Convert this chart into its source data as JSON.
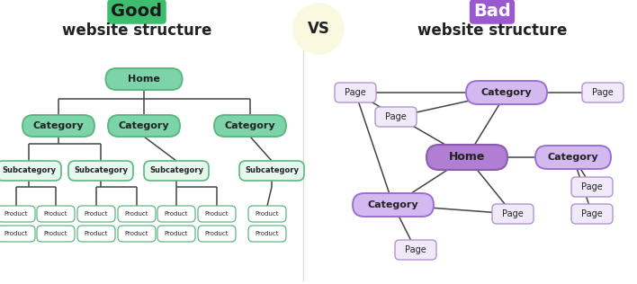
{
  "bg_color": "#ffffff",
  "good_title_word": "Good",
  "good_title_rest": "website structure",
  "bad_title_word": "Bad",
  "bad_title_rest": "website structure",
  "vs_text": "VS",
  "vs_bg": "#faf9e0",
  "good_word_bg": "#3dbe6e",
  "good_word_color": "#1a1a1a",
  "bad_word_bg": "#9b59d0",
  "bad_word_color": "#ffffff",
  "title_color": "#222222",
  "good_node_fill": "#7dd4aa",
  "good_node_border": "#5cb880",
  "good_sub_fill": "#e6f8ee",
  "good_sub_border": "#5cb880",
  "good_prod_fill": "#ffffff",
  "good_prod_border": "#5cb880",
  "bad_home_fill": "#b07fd4",
  "bad_home_border": "#8a5bb0",
  "bad_cat_fill": "#d4b8f0",
  "bad_cat_border": "#9b6fd4",
  "bad_page_fill": "#f0eaf8",
  "bad_page_border": "#b094d0",
  "line_color": "#444444"
}
